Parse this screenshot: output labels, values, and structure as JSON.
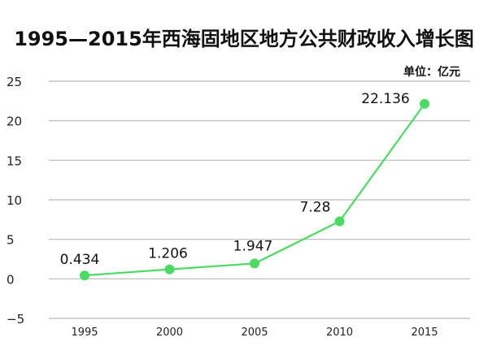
{
  "chart_data": {
    "type": "line",
    "title": "1995—2015年西海固地区地方公共财政收入增长图",
    "unit_label": "单位：亿元",
    "categories": [
      "1995",
      "2000",
      "2005",
      "2010",
      "2015"
    ],
    "values": [
      0.434,
      1.206,
      1.947,
      7.28,
      22.136
    ],
    "data_labels": [
      "0.434",
      "1.206",
      "1.947",
      "7.28",
      "22.136"
    ],
    "yticks": [
      25,
      20,
      15,
      10,
      5,
      0,
      -5
    ],
    "ytick_labels": [
      "25",
      "20",
      "15",
      "10",
      "5",
      "0",
      "−5"
    ],
    "ylim": [
      -5,
      25
    ],
    "grid": true,
    "line_color": "#4cd964",
    "grid_color": "#b8b8b8"
  }
}
